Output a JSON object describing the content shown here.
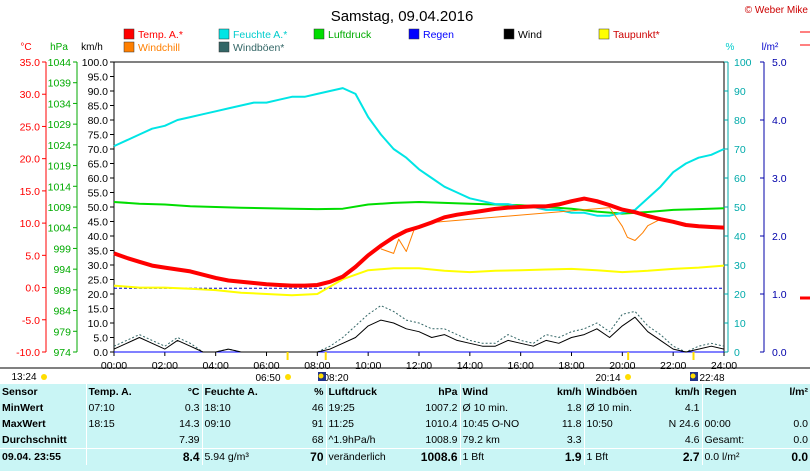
{
  "title": "Samstag, 09.04.2016",
  "copyright": "© Weber Mike",
  "colors": {
    "temp": "#ff0000",
    "humidity": "#00e5e5",
    "pressure": "#00dd00",
    "rain": "#0000ff",
    "wind": "#000000",
    "dewpoint": "#ffff00",
    "windchill": "#ff7f00",
    "gust": "#336666"
  },
  "chart_data": {
    "type": "line",
    "x_label_unit": "time",
    "xlim": [
      "00:00",
      "24:00"
    ],
    "x_ticks": [
      "00:00",
      "02:00",
      "04:00",
      "06:00",
      "08:00",
      "10:00",
      "12:00",
      "14:00",
      "16:00",
      "18:00",
      "20:00",
      "22:00",
      "24:00"
    ],
    "axes": {
      "temp_c": {
        "unit": "°C",
        "lim": [
          -10,
          35
        ],
        "ticks": [
          "35.0",
          "30.0",
          "25.0",
          "20.0",
          "15.0",
          "10.0",
          "5.0",
          "0.0",
          "-5.0",
          "-10.0"
        ]
      },
      "pressure_hpa": {
        "unit": "hPa",
        "lim": [
          974,
          1044
        ],
        "ticks": [
          "1044",
          "1039",
          "1034",
          "1029",
          "1024",
          "1019",
          "1014",
          "1009",
          "1004",
          "999",
          "994",
          "989",
          "984",
          "979",
          "974"
        ]
      },
      "wind_kmh": {
        "unit": "km/h",
        "lim": [
          0,
          100
        ],
        "ticks": [
          "100.0",
          "95.0",
          "90.0",
          "85.0",
          "80.0",
          "75.0",
          "70.0",
          "65.0",
          "60.0",
          "55.0",
          "50.0",
          "45.0",
          "40.0",
          "35.0",
          "30.0",
          "25.0",
          "20.0",
          "15.0",
          "10.0",
          "5.0",
          "0.0"
        ]
      },
      "humidity_pct": {
        "unit": "%",
        "lim": [
          0,
          100
        ],
        "ticks": [
          "100",
          "90",
          "80",
          "70",
          "60",
          "50",
          "40",
          "30",
          "20",
          "10",
          "0"
        ]
      },
      "rain_lm2": {
        "unit": "l/m²",
        "lim": [
          0,
          5
        ],
        "ticks": [
          "5.0",
          "4.0",
          "3.0",
          "2.0",
          "1.0",
          "0.0"
        ]
      }
    },
    "series": [
      {
        "name": "Temp. A.*",
        "axis": "temp_c",
        "x": [
          0,
          0.5,
          1,
          1.5,
          2,
          2.5,
          3,
          3.5,
          4,
          4.5,
          5,
          5.5,
          6,
          6.5,
          7,
          7.5,
          8,
          8.5,
          9,
          9.5,
          10,
          10.5,
          11,
          11.5,
          12,
          12.5,
          13,
          13.5,
          14,
          14.5,
          15,
          15.5,
          16,
          16.5,
          17,
          17.5,
          18,
          18.5,
          19,
          19.5,
          20,
          20.5,
          21,
          21.5,
          22,
          22.5,
          23,
          23.5,
          24
        ],
        "y": [
          5.3,
          4.6,
          4.0,
          3.4,
          3.1,
          2.8,
          2.5,
          2.0,
          1.5,
          1.1,
          0.9,
          0.7,
          0.5,
          0.4,
          0.3,
          0.3,
          0.4,
          0.9,
          1.7,
          3.2,
          5.0,
          6.5,
          7.8,
          8.8,
          9.4,
          10.1,
          10.9,
          11.3,
          11.6,
          11.9,
          12.2,
          12.4,
          12.5,
          12.6,
          12.6,
          12.9,
          13.4,
          13.8,
          13.4,
          12.8,
          12.1,
          11.7,
          11.1,
          10.6,
          10.2,
          9.7,
          9.5,
          9.4,
          9.3
        ]
      },
      {
        "name": "Windchill",
        "axis": "temp_c",
        "x": [
          10.5,
          11,
          11.2,
          11.5,
          11.8,
          12,
          12.5,
          19.5,
          20,
          20.2,
          20.5,
          20.8,
          21,
          21.5
        ],
        "y": [
          6.0,
          5.3,
          7.5,
          5.6,
          8.9,
          9.2,
          10.1,
          12.4,
          9.5,
          7.8,
          7.3,
          8.5,
          9.6,
          10.6
        ]
      },
      {
        "name": "Feuchte A.*",
        "axis": "humidity_pct",
        "x": [
          0,
          0.5,
          1,
          1.5,
          2,
          2.5,
          3,
          3.5,
          4,
          4.5,
          5,
          5.5,
          6,
          6.5,
          7,
          7.5,
          8,
          8.5,
          9,
          9.5,
          10,
          10.5,
          11,
          11.5,
          12,
          12.5,
          13,
          13.5,
          14,
          14.5,
          15,
          15.5,
          16,
          16.5,
          17,
          17.5,
          18,
          18.5,
          19,
          19.5,
          20,
          20.5,
          21,
          21.5,
          22,
          22.5,
          23,
          23.5,
          24
        ],
        "y": [
          71,
          73,
          75,
          77,
          78,
          80,
          81,
          82,
          83,
          84,
          85,
          86,
          86,
          87,
          88,
          88,
          89,
          90,
          91,
          89,
          81,
          75,
          70,
          67,
          63,
          60,
          57,
          55,
          53,
          52,
          51,
          51,
          50,
          50,
          49,
          49,
          48,
          48,
          47,
          47,
          48,
          49,
          53,
          57,
          62,
          65,
          67,
          68,
          70
        ]
      },
      {
        "name": "Luftdruck",
        "axis": "pressure_hpa",
        "x": [
          0,
          1,
          2,
          3,
          4,
          5,
          6,
          7,
          8,
          9,
          10,
          11,
          12,
          13,
          14,
          15,
          16,
          17,
          18,
          19,
          20,
          21,
          22,
          23,
          24
        ],
        "y": [
          1010.2,
          1009.8,
          1009.6,
          1009.2,
          1009.0,
          1008.8,
          1008.7,
          1008.6,
          1008.5,
          1008.6,
          1009.6,
          1010.0,
          1010.2,
          1010.0,
          1009.8,
          1009.6,
          1009.4,
          1009.0,
          1008.6,
          1007.9,
          1007.4,
          1007.8,
          1008.3,
          1008.5,
          1008.7
        ]
      },
      {
        "name": "Taupunkt*",
        "axis": "temp_c",
        "x": [
          0,
          1,
          2,
          3,
          4,
          5,
          6,
          7,
          8,
          9,
          10,
          11,
          12,
          13,
          14,
          15,
          16,
          17,
          18,
          19,
          20,
          21,
          22,
          23,
          24
        ],
        "y": [
          0.3,
          0.0,
          0.0,
          -0.2,
          -0.4,
          -0.8,
          -1.0,
          -1.2,
          -1.0,
          1.3,
          2.7,
          3.0,
          3.0,
          2.6,
          2.4,
          2.6,
          2.7,
          2.8,
          2.9,
          2.7,
          2.4,
          2.6,
          2.9,
          3.1,
          3.4
        ]
      },
      {
        "name": "Wind",
        "axis": "wind_kmh",
        "x": [
          0,
          0.5,
          1,
          1.5,
          2,
          2.5,
          3,
          3.5,
          4,
          4.5,
          5,
          5.5,
          6,
          6.5,
          7,
          7.5,
          8,
          8.5,
          9,
          9.5,
          10,
          10.5,
          11,
          11.5,
          12,
          12.5,
          13,
          13.5,
          14,
          14.5,
          15,
          15.5,
          16,
          16.5,
          17,
          17.5,
          18,
          18.5,
          19,
          19.5,
          20,
          20.5,
          21,
          21.5,
          22,
          22.5,
          23,
          23.5,
          24
        ],
        "y": [
          1,
          3,
          5,
          3,
          1,
          4,
          2,
          0,
          0,
          1,
          0,
          0,
          0,
          0,
          0,
          0,
          0,
          1,
          3,
          5,
          9,
          11,
          10,
          8,
          7,
          5,
          6,
          4,
          3,
          2,
          2,
          4,
          3,
          2,
          4,
          3,
          5,
          6,
          8,
          5,
          9,
          12,
          7,
          4,
          1,
          0,
          1,
          2,
          1
        ]
      },
      {
        "name": "Windböen*",
        "axis": "wind_kmh",
        "x": [
          0,
          0.5,
          1,
          1.5,
          2,
          2.5,
          3,
          3.5,
          4,
          4.5,
          5,
          5.5,
          6,
          6.5,
          7,
          7.5,
          8,
          8.5,
          9,
          9.5,
          10,
          10.5,
          11,
          11.5,
          12,
          12.5,
          13,
          13.5,
          14,
          14.5,
          15,
          15.5,
          16,
          16.5,
          17,
          17.5,
          18,
          18.5,
          19,
          19.5,
          20,
          20.5,
          21,
          21.5,
          22,
          22.5,
          23,
          23.5,
          24
        ],
        "y": [
          2,
          4,
          6,
          4,
          2,
          5,
          3,
          0,
          0,
          1,
          0,
          0,
          0,
          0,
          0,
          0,
          0,
          2,
          5,
          9,
          13,
          16,
          14,
          11,
          10,
          8,
          8,
          6,
          4,
          3,
          3,
          6,
          4,
          3,
          6,
          5,
          7,
          8,
          10,
          7,
          13,
          14,
          9,
          6,
          2,
          0,
          2,
          3,
          2
        ]
      },
      {
        "name": "Regen",
        "axis": "rain_lm2",
        "x": [
          0,
          24
        ],
        "y": [
          0,
          0
        ]
      }
    ],
    "reference_lines": [
      {
        "axis": "humidity_pct",
        "y": 22
      }
    ],
    "grid": false,
    "legend": [
      {
        "name": "Temp. A.*",
        "color": "#ff0000"
      },
      {
        "name": "Feuchte A.*",
        "color": "#00e5e5"
      },
      {
        "name": "Luftdruck",
        "color": "#00dd00"
      },
      {
        "name": "Regen",
        "color": "#0000ff"
      },
      {
        "name": "Wind",
        "color": "#000000"
      },
      {
        "name": "Taupunkt*",
        "color": "#ffff00"
      },
      {
        "name": "Windchill",
        "color": "#ff7f00"
      },
      {
        "name": "Windböen*",
        "color": "#336666"
      }
    ],
    "legend_placement": "top",
    "markers": [
      {
        "label": "13:24",
        "x": 13.4
      },
      {
        "label": "06:50",
        "x": 6.83
      },
      {
        "label": "08:20",
        "x": 8.33
      },
      {
        "label": "20:14",
        "x": 20.23
      },
      {
        "label": "22:48",
        "x": 22.8
      }
    ]
  },
  "stats": {
    "headers": [
      "Sensor",
      "Temp. A.",
      "°C",
      "Feuchte A.",
      "%",
      "Luftdruck",
      "hPa",
      "Wind",
      "km/h",
      "Windböen",
      "km/h",
      "Regen",
      "l/m²"
    ],
    "rows": [
      [
        "MinWert",
        "07:10",
        "0.3",
        "18:10",
        "46",
        "19:25",
        "1007.2",
        "Ø 10 min.",
        "1.8",
        "Ø 10 min.",
        "4.1",
        "",
        ""
      ],
      [
        "MaxWert",
        "18:15",
        "14.3",
        "09:10",
        "91",
        "11:25",
        "1010.4",
        "10:45   O-NO",
        "11.8",
        "10:50",
        "N 24.6",
        "00:00",
        "0.0"
      ],
      [
        "Durchschnitt",
        "",
        "7.39",
        "",
        "68",
        "^1.9hPa/h",
        "1008.9",
        "79.2 km",
        "3.3",
        "",
        "4.6",
        "Gesamt:",
        "0.0"
      ],
      [
        "09.04. 23:55",
        "",
        "8.4",
        "5.94 g/m³",
        "70",
        "veränderlich",
        "1008.6",
        "1 Bft",
        "1.9",
        "1 Bft",
        "2.7",
        "0.0 l/m²",
        "0.0"
      ]
    ]
  }
}
